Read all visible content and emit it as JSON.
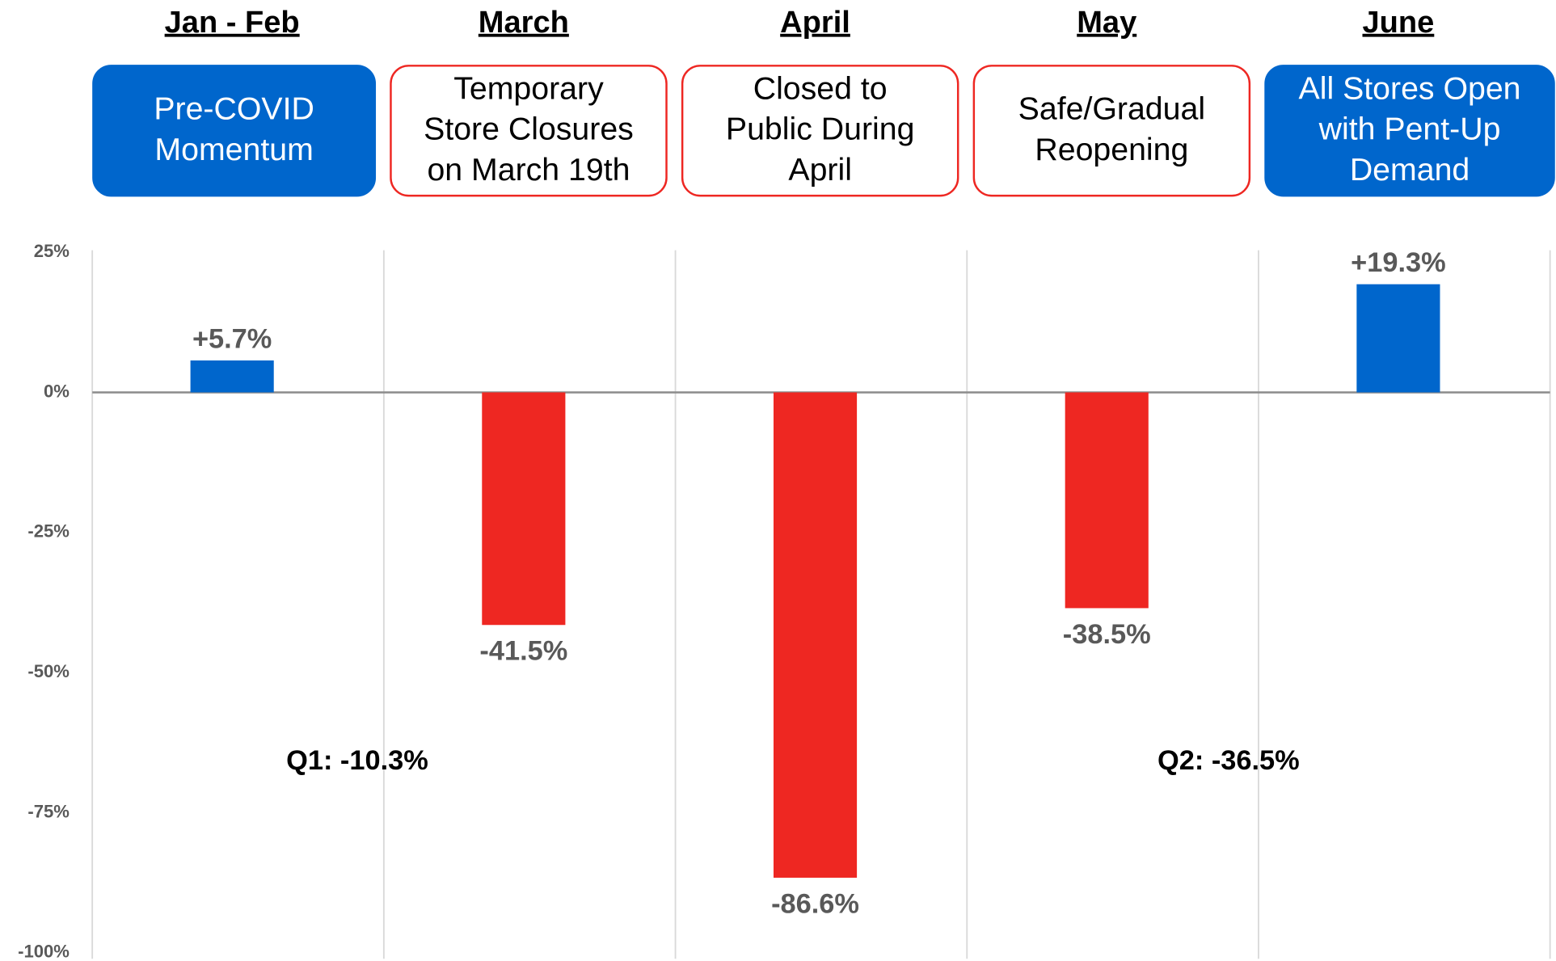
{
  "chart_data": {
    "type": "bar",
    "categories": [
      "Jan - Feb",
      "March",
      "April",
      "May",
      "June"
    ],
    "stages": [
      {
        "lines": [
          "Pre-COVID",
          "Momentum"
        ],
        "color": "#0066cc",
        "filled": true
      },
      {
        "lines": [
          "Temporary",
          "Store Closures",
          "on March 19th"
        ],
        "color": "#ee2722",
        "filled": false
      },
      {
        "lines": [
          "Closed to",
          "Public During",
          "April"
        ],
        "color": "#ee2722",
        "filled": false
      },
      {
        "lines": [
          "Safe/Gradual",
          "Reopening"
        ],
        "color": "#ee2722",
        "filled": false
      },
      {
        "lines": [
          "All Stores Open",
          "with Pent-Up",
          "Demand"
        ],
        "color": "#0066cc",
        "filled": true
      }
    ],
    "values": [
      5.7,
      -41.5,
      -86.6,
      -38.5,
      19.3
    ],
    "value_labels": [
      "+5.7%",
      "-41.5%",
      "-86.6%",
      "-38.5%",
      "+19.3%"
    ],
    "colors": [
      "#0066cc",
      "#ee2722",
      "#ee2722",
      "#ee2722",
      "#0066cc"
    ],
    "ylim": [
      -100,
      25
    ],
    "yticks": [
      {
        "value": 25,
        "label": "25%"
      },
      {
        "value": 0,
        "label": "0%"
      },
      {
        "value": -25,
        "label": "-25%"
      },
      {
        "value": -50,
        "label": "-50%"
      },
      {
        "value": -75,
        "label": "-75%"
      },
      {
        "value": -100,
        "label": "-100%"
      }
    ],
    "annotations": [
      "Q1: -10.3%",
      "Q2: -36.5%"
    ]
  }
}
